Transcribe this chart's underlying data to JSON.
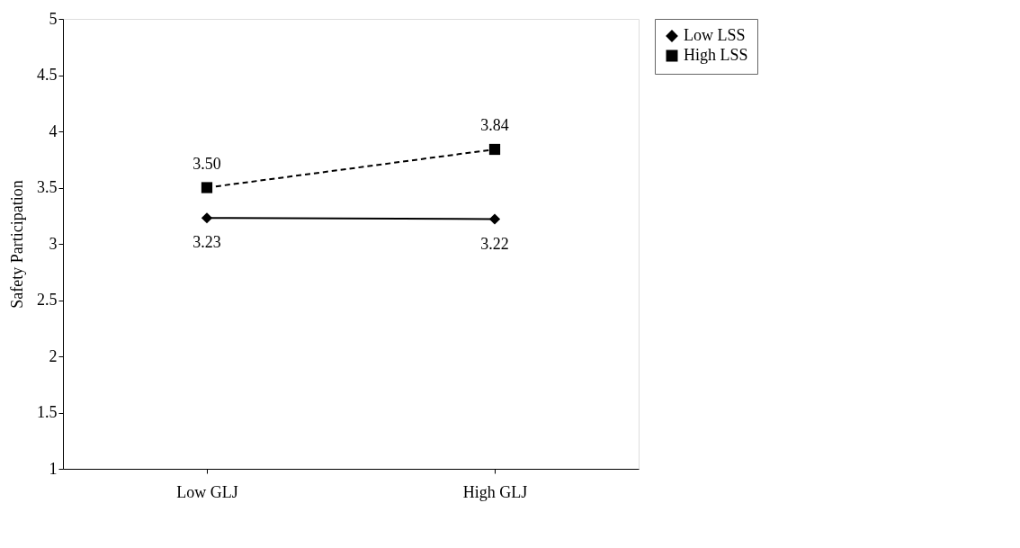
{
  "chart_data": {
    "type": "line",
    "ylabel": "Safety Participation",
    "categories": [
      "Low GLJ",
      "High GLJ"
    ],
    "series": [
      {
        "name": "Low LSS",
        "color": "#000000",
        "values": [
          3.23,
          3.22
        ],
        "value_labels": [
          "3.23",
          "3.22"
        ],
        "marker": "diamond",
        "line_style": "solid"
      },
      {
        "name": "High LSS",
        "color": "#000000",
        "values": [
          3.5,
          3.84
        ],
        "value_labels": [
          "3.50",
          "3.84"
        ],
        "marker": "square",
        "line_style": "dashed"
      }
    ],
    "ylim": [
      1,
      5
    ],
    "yticks": [
      1,
      1.5,
      2,
      2.5,
      3,
      3.5,
      4,
      4.5,
      5
    ],
    "grid": false,
    "legend": "right"
  }
}
